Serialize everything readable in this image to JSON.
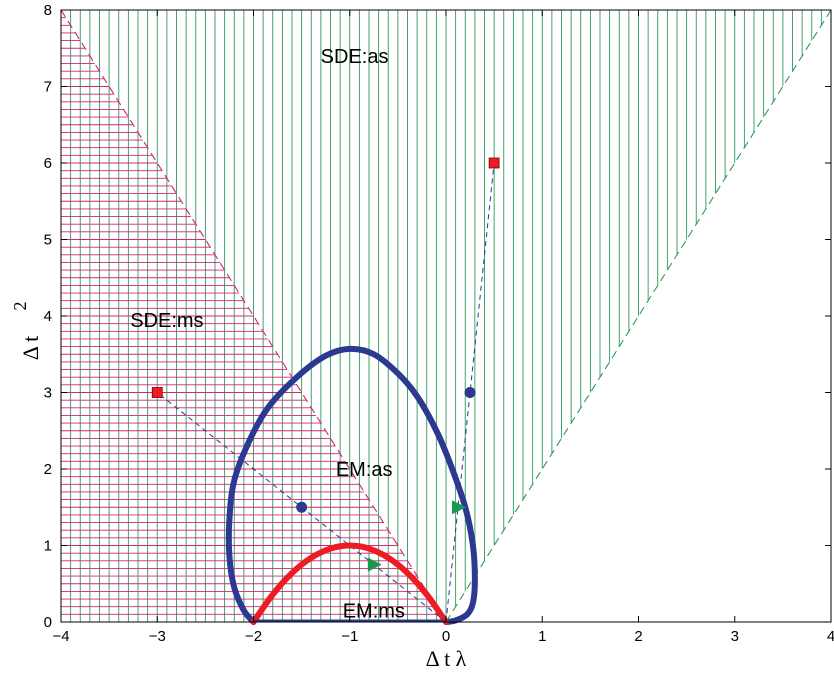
{
  "chart_data": {
    "type": "line",
    "title": "",
    "xlabel": "Δ t λ",
    "ylabel": "Δ t",
    "ylabel_superscript": "2",
    "xlim": [
      -4,
      4
    ],
    "ylim": [
      0,
      8
    ],
    "xticks": [
      -4,
      -3,
      -2,
      -1,
      0,
      1,
      2,
      3,
      4
    ],
    "yticks": [
      0,
      1,
      2,
      3,
      4,
      5,
      6,
      7,
      8
    ],
    "xtick_labels": [
      "−4",
      "−3",
      "−2",
      "−1",
      "0",
      "1",
      "2",
      "3",
      "4"
    ],
    "ytick_labels": [
      "0",
      "1",
      "2",
      "3",
      "4",
      "5",
      "6",
      "7",
      "8"
    ],
    "grid": false,
    "colors": {
      "ms_hatch": "#d4237a",
      "as_hatch": "#2e9a5a",
      "em_as_curve": "#2b3990",
      "em_ms_curve": "#ed1c24",
      "markers_square": "#ed1c24",
      "markers_circle": "#2b3990",
      "markers_triangle": "#1a9850",
      "path_lines": "#2b3990"
    },
    "regions": [
      {
        "label": "SDE:as",
        "label_pos": [
          -0.95,
          7.4
        ],
        "hatch": "vertical"
      },
      {
        "label": "SDE:ms",
        "label_pos": [
          -2.9,
          3.95
        ],
        "hatch": "horizontal"
      },
      {
        "label": "EM:as",
        "label_pos": [
          -0.85,
          2.0
        ]
      },
      {
        "label": "EM:ms",
        "label_pos": [
          -0.75,
          0.15
        ]
      }
    ],
    "boundaries": [
      {
        "name": "SDE:ms boundary",
        "style": "dashed",
        "color": "#d4237a",
        "x": [
          -4,
          0
        ],
        "y": [
          8,
          0
        ]
      },
      {
        "name": "SDE:as boundary",
        "style": "dashed",
        "color": "#2e9a5a",
        "x": [
          0,
          4
        ],
        "y": [
          0,
          8
        ]
      }
    ],
    "curves": [
      {
        "name": "EM:as stability boundary",
        "color": "#2b3990",
        "x": [
          -2.0,
          -2.1,
          -2.2,
          -2.25,
          -2.25,
          -2.2,
          -2.05,
          -1.85,
          -1.55,
          -1.25,
          -1.0,
          -0.75,
          -0.5,
          -0.3,
          -0.1,
          0.05,
          0.2,
          0.28,
          0.3,
          0.28,
          0.22,
          0.1,
          0.0
        ],
        "y": [
          0.0,
          0.15,
          0.45,
          0.85,
          1.35,
          1.85,
          2.35,
          2.8,
          3.2,
          3.48,
          3.57,
          3.5,
          3.25,
          2.95,
          2.5,
          2.05,
          1.5,
          1.0,
          0.55,
          0.25,
          0.1,
          0.02,
          0.0
        ]
      },
      {
        "name": "EM:ms stability boundary",
        "color": "#ed1c24",
        "x": [
          -2.0,
          -1.8,
          -1.6,
          -1.4,
          -1.2,
          -1.0,
          -0.8,
          -0.6,
          -0.4,
          -0.2,
          0.0
        ],
        "y": [
          0.0,
          0.36,
          0.64,
          0.84,
          0.96,
          1.0,
          0.96,
          0.84,
          0.64,
          0.36,
          0.0
        ]
      }
    ],
    "paths": [
      {
        "name": "path 1",
        "style": "dashed",
        "x": [
          0,
          0.25,
          0.5
        ],
        "y": [
          0,
          3.0,
          6.0
        ]
      },
      {
        "name": "path 2",
        "style": "dashed",
        "x": [
          0,
          -1.5,
          -3.0
        ],
        "y": [
          0,
          1.5,
          3.0
        ]
      }
    ],
    "markers": [
      {
        "shape": "square",
        "color": "#ed1c24",
        "x": 0.5,
        "y": 6.0
      },
      {
        "shape": "square",
        "color": "#ed1c24",
        "x": -3.0,
        "y": 3.0
      },
      {
        "shape": "circle",
        "color": "#2b3990",
        "x": 0.25,
        "y": 3.0
      },
      {
        "shape": "circle",
        "color": "#2b3990",
        "x": -1.5,
        "y": 1.5
      },
      {
        "shape": "triangle",
        "color": "#1a9850",
        "x": 0.125,
        "y": 1.5
      },
      {
        "shape": "triangle",
        "color": "#1a9850",
        "x": -0.75,
        "y": 0.75
      }
    ]
  }
}
